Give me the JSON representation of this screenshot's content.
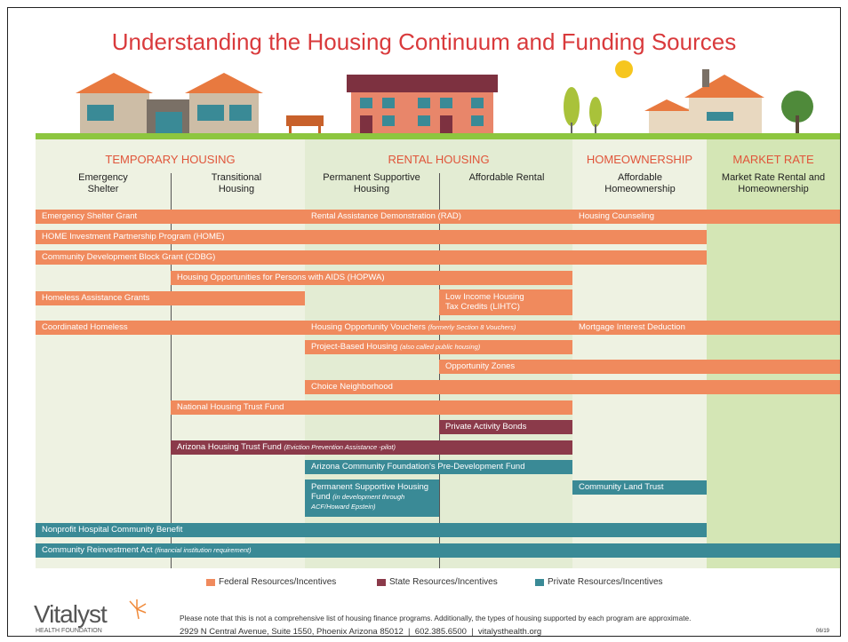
{
  "header": {
    "title": "Understanding the Housing Continuum and Funding Sources"
  },
  "columns": [
    {
      "heading": "TEMPORARY HOUSING",
      "subcolumns": [
        "Emergency Shelter",
        "Transitional Housing"
      ]
    },
    {
      "heading": "RENTAL HOUSING",
      "subcolumns": [
        "Permanent Supportive Housing",
        "Affordable Rental"
      ]
    },
    {
      "heading": "HOMEOWNERSHIP",
      "subcolumns": [
        "Affordable Homeownership"
      ]
    },
    {
      "heading": "MARKET RATE",
      "subcolumns": [
        "Market Rate Rental and Homeownership"
      ]
    }
  ],
  "programs": [
    {
      "name": "Emergency Shelter Grant"
    },
    {
      "name": "Rental Assistance Demonstration (RAD)"
    },
    {
      "name": "Housing Counseling"
    },
    {
      "name": "HOME Investment Partnership Program (HOME)"
    },
    {
      "name": "Community Development Block Grant (CDBG)"
    },
    {
      "name": "Housing Opportunities for Persons with AIDS (HOPWA)"
    },
    {
      "name": "Homeless Assistance Grants"
    },
    {
      "name": "Low Income Housing Tax Credits (LIHTC)"
    },
    {
      "name": "Coordinated Homeless"
    },
    {
      "name": "Housing Opportunity Vouchers",
      "note": "(formerly Section 8 Vouchers)"
    },
    {
      "name": "Mortgage Interest Deduction"
    },
    {
      "name": "Project-Based Housing",
      "note": "(also called public housing)"
    },
    {
      "name": "Opportunity Zones"
    },
    {
      "name": "Choice Neighborhood"
    },
    {
      "name": "National Housing Trust Fund"
    },
    {
      "name": "Private Activity Bonds"
    },
    {
      "name": "Arizona Housing Trust Fund",
      "note": "(Eviction Prevention Assistance -pilot)"
    },
    {
      "name": "Arizona Community Foundation's Pre-Development Fund"
    },
    {
      "name": "Permanent Supportive Housing Fund",
      "note": "(in development through ACF/Howard Epstein)"
    },
    {
      "name": "Community Land Trust"
    },
    {
      "name": "Nonprofit Hospital Community Benefit"
    },
    {
      "name": "Community Reinvestment Act",
      "note": "(financial institution requirement)"
    }
  ],
  "legend": [
    "Federal Resources/Incentives",
    "State Resources/Incentives",
    "Private Resources/Incentives"
  ],
  "footer": {
    "logo": "Vitalyst",
    "logo_sub": "HEALTH FOUNDATION",
    "note": "Please note that this is not a comprehensive list of housing finance programs. Additionally, the types of housing supported by each program are approximate.",
    "address": "2929 N Central Avenue, Suite 1550, Phoenix Arizona 85012  |  602.385.6500  |  vitalysthealth.org",
    "date": "06/19"
  }
}
